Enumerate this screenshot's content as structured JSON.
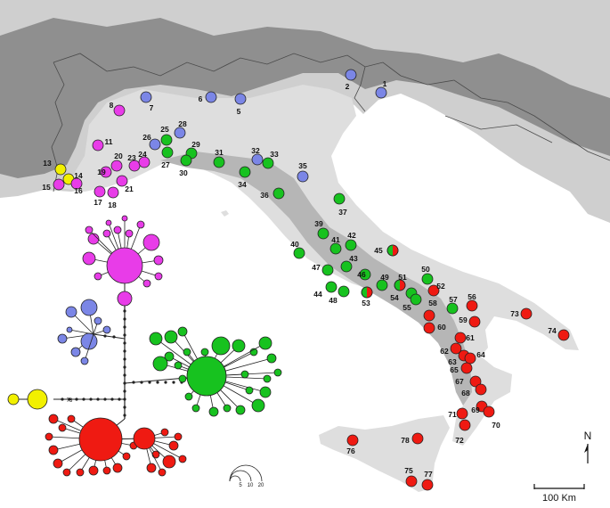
{
  "colors": {
    "sea": "#ffffff",
    "land_outside": "#cfcfcf",
    "alps": "#8f8f8f",
    "italy": "#dedede",
    "apennines": "#b6b6b6",
    "borders": "#4a4a4a",
    "blue": "#7b86e6",
    "magenta": "#e83ce8",
    "green": "#17c21f",
    "red": "#ef1a12",
    "yellow": "#f2f000",
    "stroke": "#222222"
  },
  "sites": [
    {
      "id": "1",
      "color": "blue"
    },
    {
      "id": "2",
      "color": "blue"
    },
    {
      "id": "5",
      "color": "blue"
    },
    {
      "id": "6",
      "color": "blue"
    },
    {
      "id": "7",
      "color": "blue"
    },
    {
      "id": "8",
      "color": "magenta"
    },
    {
      "id": "11",
      "color": "magenta"
    },
    {
      "id": "13",
      "color": "yellow"
    },
    {
      "id": "14",
      "color": "yellow"
    },
    {
      "id": "15",
      "color": "magenta"
    },
    {
      "id": "16",
      "color": "magenta"
    },
    {
      "id": "17",
      "color": "magenta"
    },
    {
      "id": "18",
      "color": "magenta"
    },
    {
      "id": "19",
      "color": "magenta"
    },
    {
      "id": "20",
      "color": "magenta"
    },
    {
      "id": "21",
      "color": "magenta"
    },
    {
      "id": "23",
      "color": "magenta"
    },
    {
      "id": "24",
      "color": "magenta"
    },
    {
      "id": "25",
      "color": "green"
    },
    {
      "id": "26",
      "color": "blue"
    },
    {
      "id": "27",
      "color": "green"
    },
    {
      "id": "28",
      "color": "blue"
    },
    {
      "id": "29",
      "color": "green"
    },
    {
      "id": "30",
      "color": "green"
    },
    {
      "id": "31",
      "color": "green"
    },
    {
      "id": "32",
      "color": "blue"
    },
    {
      "id": "33",
      "color": "green"
    },
    {
      "id": "34",
      "color": "green"
    },
    {
      "id": "35",
      "color": "blue"
    },
    {
      "id": "36",
      "color": "green"
    },
    {
      "id": "37",
      "color": "green"
    },
    {
      "id": "39",
      "color": "green"
    },
    {
      "id": "40",
      "color": "green"
    },
    {
      "id": "41",
      "color": "green"
    },
    {
      "id": "42",
      "color": "green"
    },
    {
      "id": "43",
      "color": "green"
    },
    {
      "id": "44",
      "color": "green"
    },
    {
      "id": "45",
      "color": "green+red"
    },
    {
      "id": "46",
      "color": "green"
    },
    {
      "id": "47",
      "color": "green"
    },
    {
      "id": "48",
      "color": "green"
    },
    {
      "id": "49",
      "color": "green"
    },
    {
      "id": "50",
      "color": "green"
    },
    {
      "id": "51",
      "color": "green+red"
    },
    {
      "id": "52",
      "color": "red"
    },
    {
      "id": "53",
      "color": "green+red"
    },
    {
      "id": "54",
      "color": "green"
    },
    {
      "id": "55",
      "color": "green"
    },
    {
      "id": "56",
      "color": "red"
    },
    {
      "id": "57",
      "color": "green"
    },
    {
      "id": "58",
      "color": "red"
    },
    {
      "id": "59",
      "color": "red"
    },
    {
      "id": "60",
      "color": "red"
    },
    {
      "id": "61",
      "color": "red"
    },
    {
      "id": "62",
      "color": "red"
    },
    {
      "id": "63",
      "color": "red"
    },
    {
      "id": "64",
      "color": "red"
    },
    {
      "id": "65",
      "color": "red"
    },
    {
      "id": "67",
      "color": "red"
    },
    {
      "id": "68",
      "color": "red"
    },
    {
      "id": "69",
      "color": "red"
    },
    {
      "id": "70",
      "color": "red"
    },
    {
      "id": "71",
      "color": "red"
    },
    {
      "id": "72",
      "color": "red"
    },
    {
      "id": "73",
      "color": "red"
    },
    {
      "id": "74",
      "color": "red"
    },
    {
      "id": "75",
      "color": "red"
    },
    {
      "id": "76",
      "color": "red"
    },
    {
      "id": "77",
      "color": "red"
    },
    {
      "id": "78",
      "color": "red"
    }
  ],
  "network": {
    "link_label": "73",
    "legend_sizes": [
      "5",
      "10",
      "20"
    ]
  },
  "scale_bar": {
    "label": "100 Km"
  },
  "north_arrow": {
    "label": "N"
  }
}
